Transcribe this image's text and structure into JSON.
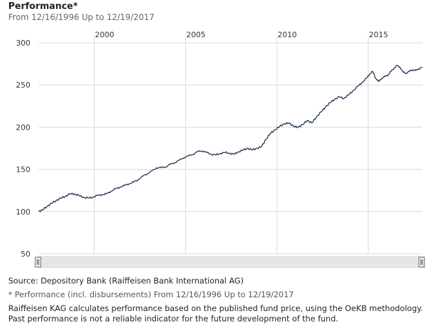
{
  "header": {
    "title": "Performance*",
    "subtitle": "From 12/16/1996 Up to 12/19/2017"
  },
  "footer": {
    "source": "Source: Depository Bank (Raiffeisen Bank International AG)",
    "footnote_marker": "*",
    "footnote": "Performance (incl. disbursements) From 12/16/1996 Up to 12/19/2017",
    "disclaimer": "Raiffeisen KAG calculates performance based on the published fund price, using the OeKB methodology. Past performance is not a reliable indicator for the future development of the fund."
  },
  "colors": {
    "line": "#1f3550",
    "grid": "#d9d9d9",
    "navigator": "#e6e6e6"
  },
  "chart_data": {
    "type": "line",
    "title": "Performance*",
    "subtitle": "From 12/16/1996 Up to 12/19/2017",
    "xlabel": "",
    "ylabel": "",
    "x_ticks": [
      "2000",
      "2005",
      "2010",
      "2015"
    ],
    "x_tick_labels": [
      "2000",
      "2005",
      "2010",
      "2015"
    ],
    "y_ticks": [
      50,
      100,
      150,
      200,
      250,
      300
    ],
    "y_tick_labels": [
      "50",
      "100",
      "150",
      "200",
      "250",
      "300"
    ],
    "xlim": [
      "1996-12-16",
      "2017-12-19"
    ],
    "ylim": [
      50,
      300
    ],
    "grid": true,
    "legend": false,
    "series": [
      {
        "values": [
          {
            "x": "1996-12-16",
            "y": 100
          },
          {
            "x": "1997-03-01",
            "y": 102
          },
          {
            "x": "1997-06-01",
            "y": 106
          },
          {
            "x": "1997-09-01",
            "y": 110
          },
          {
            "x": "1997-12-01",
            "y": 113
          },
          {
            "x": "1998-03-01",
            "y": 116
          },
          {
            "x": "1998-06-01",
            "y": 118
          },
          {
            "x": "1998-09-01",
            "y": 121
          },
          {
            "x": "1998-12-01",
            "y": 121
          },
          {
            "x": "1999-03-01",
            "y": 119
          },
          {
            "x": "1999-06-01",
            "y": 117
          },
          {
            "x": "1999-09-01",
            "y": 116
          },
          {
            "x": "1999-12-01",
            "y": 117
          },
          {
            "x": "2000-03-01",
            "y": 119
          },
          {
            "x": "2000-06-01",
            "y": 120
          },
          {
            "x": "2000-09-01",
            "y": 121
          },
          {
            "x": "2000-12-01",
            "y": 124
          },
          {
            "x": "2001-03-01",
            "y": 127
          },
          {
            "x": "2001-06-01",
            "y": 129
          },
          {
            "x": "2001-09-01",
            "y": 131
          },
          {
            "x": "2001-12-01",
            "y": 133
          },
          {
            "x": "2002-03-01",
            "y": 135
          },
          {
            "x": "2002-06-01",
            "y": 138
          },
          {
            "x": "2002-09-01",
            "y": 142
          },
          {
            "x": "2002-12-01",
            "y": 145
          },
          {
            "x": "2003-03-01",
            "y": 148
          },
          {
            "x": "2003-06-01",
            "y": 152
          },
          {
            "x": "2003-09-01",
            "y": 152
          },
          {
            "x": "2003-12-01",
            "y": 153
          },
          {
            "x": "2004-03-01",
            "y": 156
          },
          {
            "x": "2004-06-01",
            "y": 158
          },
          {
            "x": "2004-09-01",
            "y": 161
          },
          {
            "x": "2004-12-01",
            "y": 164
          },
          {
            "x": "2005-03-01",
            "y": 166
          },
          {
            "x": "2005-06-01",
            "y": 168
          },
          {
            "x": "2005-09-01",
            "y": 171
          },
          {
            "x": "2005-12-01",
            "y": 172
          },
          {
            "x": "2006-03-01",
            "y": 170
          },
          {
            "x": "2006-06-01",
            "y": 168
          },
          {
            "x": "2006-09-01",
            "y": 167
          },
          {
            "x": "2006-12-01",
            "y": 169
          },
          {
            "x": "2007-03-01",
            "y": 170
          },
          {
            "x": "2007-06-01",
            "y": 169
          },
          {
            "x": "2007-09-01",
            "y": 168
          },
          {
            "x": "2007-12-01",
            "y": 171
          },
          {
            "x": "2008-03-01",
            "y": 173
          },
          {
            "x": "2008-06-01",
            "y": 175
          },
          {
            "x": "2008-09-01",
            "y": 173
          },
          {
            "x": "2008-12-01",
            "y": 175
          },
          {
            "x": "2009-03-01",
            "y": 177
          },
          {
            "x": "2009-06-01",
            "y": 186
          },
          {
            "x": "2009-09-01",
            "y": 193
          },
          {
            "x": "2009-12-01",
            "y": 197
          },
          {
            "x": "2010-03-01",
            "y": 201
          },
          {
            "x": "2010-06-01",
            "y": 204
          },
          {
            "x": "2010-09-01",
            "y": 205
          },
          {
            "x": "2010-12-01",
            "y": 201
          },
          {
            "x": "2011-03-01",
            "y": 200
          },
          {
            "x": "2011-06-01",
            "y": 203
          },
          {
            "x": "2011-09-01",
            "y": 208
          },
          {
            "x": "2011-12-01",
            "y": 205
          },
          {
            "x": "2012-03-01",
            "y": 212
          },
          {
            "x": "2012-06-01",
            "y": 218
          },
          {
            "x": "2012-09-01",
            "y": 224
          },
          {
            "x": "2012-12-01",
            "y": 229
          },
          {
            "x": "2013-03-01",
            "y": 233
          },
          {
            "x": "2013-06-01",
            "y": 236
          },
          {
            "x": "2013-09-01",
            "y": 234
          },
          {
            "x": "2013-12-01",
            "y": 238
          },
          {
            "x": "2014-03-01",
            "y": 243
          },
          {
            "x": "2014-06-01",
            "y": 248
          },
          {
            "x": "2014-09-01",
            "y": 253
          },
          {
            "x": "2014-12-01",
            "y": 258
          },
          {
            "x": "2015-02-01",
            "y": 263
          },
          {
            "x": "2015-04-01",
            "y": 266
          },
          {
            "x": "2015-06-01",
            "y": 258
          },
          {
            "x": "2015-08-01",
            "y": 254
          },
          {
            "x": "2015-10-01",
            "y": 258
          },
          {
            "x": "2015-12-01",
            "y": 260
          },
          {
            "x": "2016-02-01",
            "y": 262
          },
          {
            "x": "2016-04-01",
            "y": 266
          },
          {
            "x": "2016-06-01",
            "y": 270
          },
          {
            "x": "2016-08-01",
            "y": 273
          },
          {
            "x": "2016-10-01",
            "y": 271
          },
          {
            "x": "2016-12-01",
            "y": 265
          },
          {
            "x": "2017-02-01",
            "y": 264
          },
          {
            "x": "2017-04-01",
            "y": 266
          },
          {
            "x": "2017-06-01",
            "y": 268
          },
          {
            "x": "2017-08-01",
            "y": 267
          },
          {
            "x": "2017-10-01",
            "y": 269
          },
          {
            "x": "2017-12-19",
            "y": 271
          }
        ]
      }
    ]
  }
}
